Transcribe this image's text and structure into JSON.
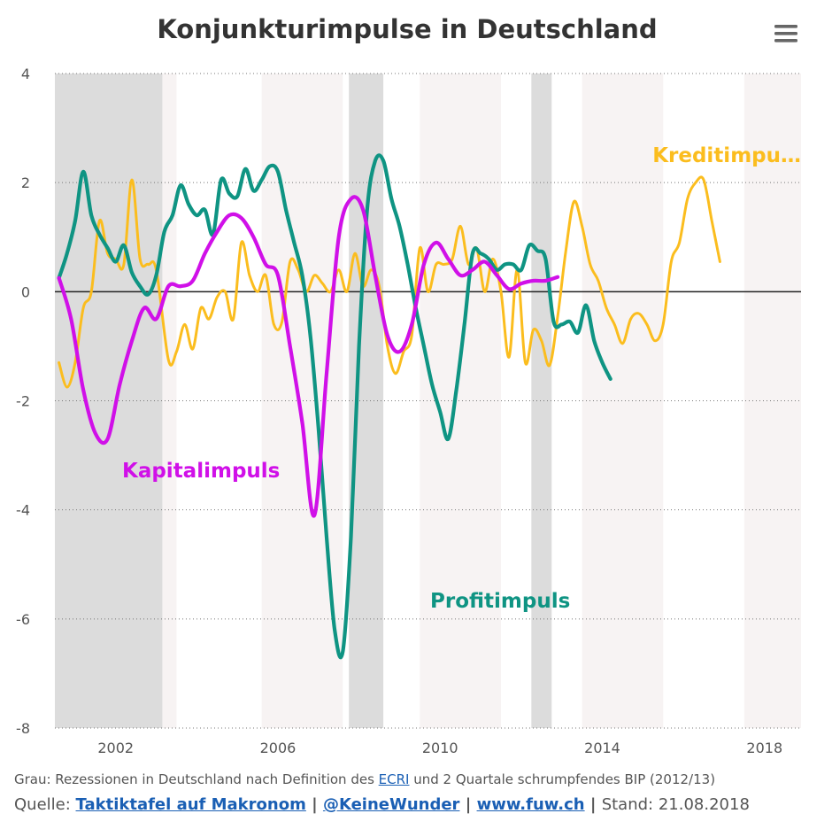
{
  "chart_data": {
    "type": "line",
    "title": "Konjunkturimpulse in Deutschland",
    "xlabel": "",
    "ylabel": "",
    "xlim": [
      2000.5,
      2018.9
    ],
    "ylim": [
      -8,
      4
    ],
    "grid": true,
    "x_ticks": [
      2002,
      2006,
      2010,
      2014,
      2018
    ],
    "x_tick_labels": [
      "2002",
      "2006",
      "2010",
      "2014",
      "2018"
    ],
    "y_ticks": [
      -8,
      -6,
      -4,
      -2,
      0,
      2,
      4
    ],
    "y_tick_labels": [
      "-8",
      "-6",
      "-4",
      "-2",
      "0",
      "2",
      "4"
    ],
    "recessions": [
      [
        2000.5,
        2003.15
      ],
      [
        2007.75,
        2008.6
      ],
      [
        2012.25,
        2012.75
      ]
    ],
    "shaded_periods": [
      [
        2003.15,
        2003.5
      ],
      [
        2005.6,
        2007.6
      ],
      [
        2009.5,
        2011.5
      ],
      [
        2013.5,
        2015.5
      ],
      [
        2017.5,
        2018.9
      ]
    ],
    "series": [
      {
        "name": "Kreditimpuls",
        "label": "Kreditimpu…",
        "color": "#fbbd1e",
        "points": [
          [
            2000.6,
            -1.3
          ],
          [
            2000.8,
            -1.75
          ],
          [
            2001.0,
            -1.3
          ],
          [
            2001.2,
            -0.3
          ],
          [
            2001.4,
            0.0
          ],
          [
            2001.6,
            1.3
          ],
          [
            2001.8,
            0.7
          ],
          [
            2002.0,
            0.6
          ],
          [
            2002.2,
            0.5
          ],
          [
            2002.4,
            2.05
          ],
          [
            2002.6,
            0.6
          ],
          [
            2002.8,
            0.5
          ],
          [
            2003.0,
            0.4
          ],
          [
            2003.3,
            -1.25
          ],
          [
            2003.5,
            -1.1
          ],
          [
            2003.7,
            -0.6
          ],
          [
            2003.9,
            -1.05
          ],
          [
            2004.1,
            -0.3
          ],
          [
            2004.3,
            -0.5
          ],
          [
            2004.5,
            -0.1
          ],
          [
            2004.7,
            0.0
          ],
          [
            2004.9,
            -0.5
          ],
          [
            2005.1,
            0.9
          ],
          [
            2005.3,
            0.3
          ],
          [
            2005.5,
            0.0
          ],
          [
            2005.7,
            0.3
          ],
          [
            2005.9,
            -0.6
          ],
          [
            2006.1,
            -0.55
          ],
          [
            2006.3,
            0.55
          ],
          [
            2006.5,
            0.4
          ],
          [
            2006.7,
            0.0
          ],
          [
            2006.9,
            0.3
          ],
          [
            2007.1,
            0.15
          ],
          [
            2007.3,
            0.0
          ],
          [
            2007.5,
            0.4
          ],
          [
            2007.7,
            0.0
          ],
          [
            2007.9,
            0.7
          ],
          [
            2008.1,
            0.1
          ],
          [
            2008.3,
            0.4
          ],
          [
            2008.5,
            0.1
          ],
          [
            2008.7,
            -1.0
          ],
          [
            2008.9,
            -1.5
          ],
          [
            2009.1,
            -1.1
          ],
          [
            2009.3,
            -0.8
          ],
          [
            2009.5,
            0.8
          ],
          [
            2009.7,
            0.0
          ],
          [
            2009.9,
            0.5
          ],
          [
            2010.1,
            0.5
          ],
          [
            2010.3,
            0.6
          ],
          [
            2010.5,
            1.2
          ],
          [
            2010.7,
            0.5
          ],
          [
            2010.9,
            0.8
          ],
          [
            2011.1,
            0.0
          ],
          [
            2011.3,
            0.6
          ],
          [
            2011.5,
            0.0
          ],
          [
            2011.7,
            -1.2
          ],
          [
            2011.9,
            0.4
          ],
          [
            2012.1,
            -1.3
          ],
          [
            2012.3,
            -0.7
          ],
          [
            2012.5,
            -0.9
          ],
          [
            2012.7,
            -1.35
          ],
          [
            2012.9,
            -0.45
          ],
          [
            2013.1,
            0.75
          ],
          [
            2013.3,
            1.65
          ],
          [
            2013.5,
            1.2
          ],
          [
            2013.7,
            0.5
          ],
          [
            2013.9,
            0.2
          ],
          [
            2014.1,
            -0.3
          ],
          [
            2014.3,
            -0.6
          ],
          [
            2014.5,
            -0.95
          ],
          [
            2014.7,
            -0.5
          ],
          [
            2014.9,
            -0.4
          ],
          [
            2015.1,
            -0.6
          ],
          [
            2015.3,
            -0.9
          ],
          [
            2015.5,
            -0.6
          ],
          [
            2015.7,
            0.55
          ],
          [
            2015.9,
            0.9
          ],
          [
            2016.1,
            1.7
          ],
          [
            2016.3,
            2.0
          ],
          [
            2016.5,
            2.05
          ],
          [
            2016.7,
            1.3
          ],
          [
            2016.9,
            0.55
          ]
        ]
      },
      {
        "name": "Profitimpuls",
        "label": "Profitimpuls",
        "color": "#0f9483",
        "points": [
          [
            2000.6,
            0.25
          ],
          [
            2000.8,
            0.7
          ],
          [
            2001.0,
            1.3
          ],
          [
            2001.2,
            2.2
          ],
          [
            2001.4,
            1.4
          ],
          [
            2001.6,
            1.05
          ],
          [
            2001.8,
            0.8
          ],
          [
            2002.0,
            0.55
          ],
          [
            2002.2,
            0.85
          ],
          [
            2002.4,
            0.35
          ],
          [
            2002.6,
            0.1
          ],
          [
            2002.8,
            -0.05
          ],
          [
            2003.0,
            0.3
          ],
          [
            2003.2,
            1.1
          ],
          [
            2003.4,
            1.4
          ],
          [
            2003.6,
            1.95
          ],
          [
            2003.8,
            1.6
          ],
          [
            2004.0,
            1.4
          ],
          [
            2004.2,
            1.5
          ],
          [
            2004.4,
            1.05
          ],
          [
            2004.6,
            2.05
          ],
          [
            2004.8,
            1.8
          ],
          [
            2005.0,
            1.75
          ],
          [
            2005.2,
            2.25
          ],
          [
            2005.4,
            1.85
          ],
          [
            2005.6,
            2.05
          ],
          [
            2005.8,
            2.3
          ],
          [
            2006.0,
            2.2
          ],
          [
            2006.2,
            1.5
          ],
          [
            2006.4,
            0.9
          ],
          [
            2006.6,
            0.3
          ],
          [
            2006.8,
            -0.8
          ],
          [
            2007.0,
            -2.5
          ],
          [
            2007.2,
            -4.5
          ],
          [
            2007.4,
            -6.2
          ],
          [
            2007.6,
            -6.6
          ],
          [
            2007.8,
            -4.5
          ],
          [
            2008.0,
            -1.0
          ],
          [
            2008.2,
            1.5
          ],
          [
            2008.4,
            2.4
          ],
          [
            2008.6,
            2.4
          ],
          [
            2008.8,
            1.7
          ],
          [
            2009.0,
            1.2
          ],
          [
            2009.2,
            0.5
          ],
          [
            2009.4,
            -0.3
          ],
          [
            2009.6,
            -1.0
          ],
          [
            2009.8,
            -1.7
          ],
          [
            2010.0,
            -2.2
          ],
          [
            2010.2,
            -2.7
          ],
          [
            2010.4,
            -1.8
          ],
          [
            2010.6,
            -0.6
          ],
          [
            2010.8,
            0.7
          ],
          [
            2011.0,
            0.7
          ],
          [
            2011.2,
            0.6
          ],
          [
            2011.4,
            0.4
          ],
          [
            2011.6,
            0.5
          ],
          [
            2011.8,
            0.5
          ],
          [
            2012.0,
            0.4
          ],
          [
            2012.2,
            0.85
          ],
          [
            2012.4,
            0.75
          ],
          [
            2012.6,
            0.6
          ],
          [
            2012.8,
            -0.55
          ],
          [
            2013.0,
            -0.6
          ],
          [
            2013.2,
            -0.55
          ],
          [
            2013.4,
            -0.75
          ],
          [
            2013.6,
            -0.25
          ],
          [
            2013.8,
            -0.9
          ],
          [
            2014.0,
            -1.3
          ],
          [
            2014.2,
            -1.6
          ]
        ]
      },
      {
        "name": "Kapitalimpuls",
        "label": "Kapitalimpuls",
        "color": "#d010e8",
        "points": [
          [
            2000.6,
            0.25
          ],
          [
            2000.9,
            -0.5
          ],
          [
            2001.2,
            -1.8
          ],
          [
            2001.5,
            -2.6
          ],
          [
            2001.8,
            -2.7
          ],
          [
            2002.1,
            -1.7
          ],
          [
            2002.4,
            -0.9
          ],
          [
            2002.7,
            -0.3
          ],
          [
            2003.0,
            -0.5
          ],
          [
            2003.3,
            0.1
          ],
          [
            2003.6,
            0.1
          ],
          [
            2003.9,
            0.2
          ],
          [
            2004.2,
            0.7
          ],
          [
            2004.5,
            1.1
          ],
          [
            2004.8,
            1.4
          ],
          [
            2005.1,
            1.35
          ],
          [
            2005.4,
            1.0
          ],
          [
            2005.7,
            0.5
          ],
          [
            2006.0,
            0.3
          ],
          [
            2006.3,
            -1.0
          ],
          [
            2006.6,
            -2.4
          ],
          [
            2006.9,
            -4.1
          ],
          [
            2007.2,
            -1.5
          ],
          [
            2007.5,
            1.0
          ],
          [
            2007.8,
            1.7
          ],
          [
            2008.1,
            1.5
          ],
          [
            2008.4,
            0.3
          ],
          [
            2008.7,
            -0.8
          ],
          [
            2009.0,
            -1.1
          ],
          [
            2009.3,
            -0.6
          ],
          [
            2009.6,
            0.5
          ],
          [
            2009.9,
            0.9
          ],
          [
            2010.2,
            0.6
          ],
          [
            2010.5,
            0.3
          ],
          [
            2010.8,
            0.4
          ],
          [
            2011.1,
            0.55
          ],
          [
            2011.4,
            0.3
          ],
          [
            2011.7,
            0.05
          ],
          [
            2012.0,
            0.15
          ],
          [
            2012.3,
            0.2
          ],
          [
            2012.6,
            0.2
          ],
          [
            2012.9,
            0.27
          ]
        ]
      }
    ]
  },
  "footer": {
    "note_prefix": "Grau: Rezessionen in Deutschland nach Definition des ",
    "note_link": "ECRI",
    "note_suffix": " und 2 Quartale schrumpfendes BIP (2012/13)",
    "source_label": "Quelle: ",
    "link1": "Taktiktafel auf Makronom",
    "link2": "@KeineWunder",
    "link3": "www.fuw.ch",
    "sep": " | ",
    "stand": "Stand: 21.08.2018"
  }
}
